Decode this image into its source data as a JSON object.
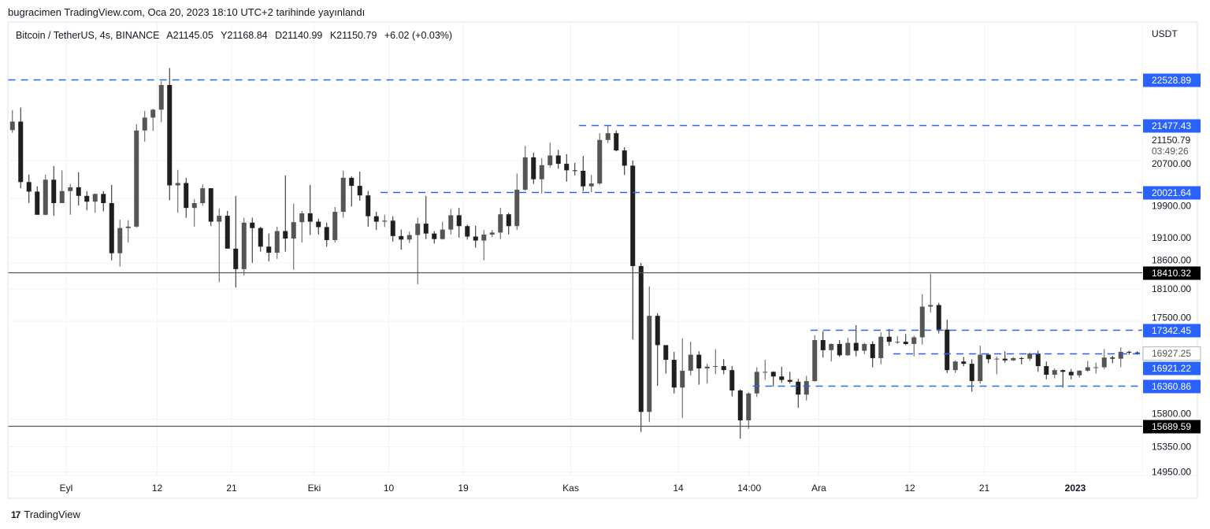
{
  "publication": "bugracimen TradingView.com, Oca 20, 2023 18:10 UTC+2 tarihinde yayınlandı",
  "legend": {
    "symbol": "Bitcoin / TetherUS, 4s, BINANCE",
    "open": "A21145.05",
    "high": "Y21168.84",
    "low": "D21140.99",
    "close": "K21150.79",
    "change": "+6.02 (+0.03%)"
  },
  "brand": "TradingView",
  "chart_data": {
    "type": "candlestick",
    "symbol": "BTCUSDT",
    "exchange": "BINANCE",
    "interval": "4s",
    "currency": "USDT",
    "yscale": "log",
    "ylim": [
      14800,
      23100
    ],
    "grid": true,
    "colors": {
      "candle": "#555555",
      "candle_down": "#1f1f1f",
      "dashed_level": "#2962ff",
      "solid_level": "#000000"
    },
    "y_ticks": [
      20700,
      19900,
      19100,
      18600,
      18100,
      17500,
      15800,
      15350,
      14950
    ],
    "x_ticks": [
      {
        "date": "2022-09-01",
        "label": "Eyl"
      },
      {
        "date": "2022-09-12",
        "label": "12"
      },
      {
        "date": "2022-09-21",
        "label": "21"
      },
      {
        "date": "2022-10-01",
        "label": "Eki"
      },
      {
        "date": "2022-10-10",
        "label": "10"
      },
      {
        "date": "2022-10-19",
        "label": "19"
      },
      {
        "date": "2022-11-01",
        "label": "Kas"
      },
      {
        "date": "2022-11-14",
        "label": "14"
      },
      {
        "date": "2022-11-22T14:00",
        "label": "14:00"
      },
      {
        "date": "2022-12-01",
        "label": "Ara"
      },
      {
        "date": "2022-12-12",
        "label": "12"
      },
      {
        "date": "2022-12-21",
        "label": "21"
      },
      {
        "date": "2023-01-01",
        "label": "2023",
        "bold": true
      }
    ],
    "levels": [
      {
        "price": 22528.89,
        "label": "22528.89",
        "style": "dashed",
        "from": "2022-08-25"
      },
      {
        "price": 21477.43,
        "label": "21477.43",
        "style": "dashed",
        "from": "2022-11-02"
      },
      {
        "price": 20021.64,
        "label": "20021.64",
        "style": "dashed",
        "from": "2022-10-09"
      },
      {
        "price": 18410.32,
        "label": "18410.32",
        "style": "solid",
        "from": "2022-08-25"
      },
      {
        "price": 17342.45,
        "label": "17342.45",
        "style": "dashed",
        "from": "2022-11-30"
      },
      {
        "price": 16921.22,
        "label": "16921.22",
        "style": "dashed",
        "from": "2022-12-10"
      },
      {
        "price": 16360.86,
        "label": "16360.86",
        "style": "dashed",
        "from": "2022-11-23"
      },
      {
        "price": 15689.59,
        "label": "15689.59",
        "style": "solid",
        "from": "2022-08-25"
      }
    ],
    "last_price": {
      "price": 21150.79,
      "label": "21150.79",
      "countdown": "03:49:26"
    },
    "crosshair_price": {
      "price": 16927.25,
      "label": "16927.25"
    },
    "candles_start": "2022-08-25",
    "candles": [
      [
        21370,
        21820,
        21310,
        21560
      ],
      [
        21560,
        21880,
        20110,
        20240
      ],
      [
        20240,
        20400,
        19800,
        20040
      ],
      [
        20040,
        20150,
        19600,
        19560
      ],
      [
        19560,
        20400,
        19550,
        20290
      ],
      [
        20290,
        20580,
        19540,
        19800
      ],
      [
        19800,
        20490,
        19800,
        20050
      ],
      [
        20050,
        20200,
        19560,
        20130
      ],
      [
        20130,
        20450,
        19750,
        19950
      ],
      [
        19950,
        20050,
        19650,
        19830
      ],
      [
        19830,
        20000,
        19600,
        19990
      ],
      [
        19990,
        20050,
        19630,
        19800
      ],
      [
        19800,
        20180,
        18650,
        18790
      ],
      [
        18790,
        19460,
        18530,
        19290
      ],
      [
        19290,
        19450,
        19000,
        19320
      ],
      [
        19320,
        21500,
        19300,
        21360
      ],
      [
        21360,
        21800,
        21110,
        21650
      ],
      [
        21650,
        21850,
        21350,
        21830
      ],
      [
        21830,
        22490,
        21550,
        22400
      ],
      [
        22400,
        22800,
        19860,
        20170
      ],
      [
        20170,
        20500,
        19600,
        20220
      ],
      [
        20220,
        20330,
        19500,
        19700
      ],
      [
        19700,
        19880,
        19320,
        19800
      ],
      [
        19800,
        20190,
        19750,
        20110
      ],
      [
        20110,
        20110,
        19330,
        19420
      ],
      [
        19420,
        19690,
        18230,
        19540
      ],
      [
        19540,
        19640,
        18930,
        18880
      ],
      [
        18880,
        19950,
        18130,
        18480
      ],
      [
        18480,
        19500,
        18360,
        19400
      ],
      [
        19400,
        19500,
        18600,
        19290
      ],
      [
        19290,
        19320,
        18820,
        18920
      ],
      [
        18920,
        19180,
        18630,
        18800
      ],
      [
        18800,
        19320,
        18680,
        19230
      ],
      [
        19230,
        20380,
        18820,
        19080
      ],
      [
        19080,
        19790,
        18470,
        19410
      ],
      [
        19410,
        19640,
        19000,
        19590
      ],
      [
        19590,
        20180,
        19150,
        19420
      ],
      [
        19420,
        19480,
        19160,
        19310
      ],
      [
        19310,
        19400,
        18920,
        19050
      ],
      [
        19050,
        19720,
        19000,
        19620
      ],
      [
        19620,
        20480,
        19500,
        20330
      ],
      [
        20330,
        20360,
        19730,
        20160
      ],
      [
        20160,
        20460,
        19850,
        19960
      ],
      [
        19960,
        20050,
        19320,
        19530
      ],
      [
        19530,
        19620,
        19250,
        19420
      ],
      [
        19420,
        19560,
        19310,
        19440
      ],
      [
        19440,
        19530,
        19020,
        19130
      ],
      [
        19130,
        19260,
        18860,
        19060
      ],
      [
        19060,
        19220,
        18990,
        19150
      ],
      [
        19150,
        19500,
        18190,
        19380
      ],
      [
        19380,
        19950,
        19070,
        19180
      ],
      [
        19180,
        19230,
        18980,
        19070
      ],
      [
        19070,
        19420,
        19060,
        19260
      ],
      [
        19260,
        19680,
        19160,
        19550
      ],
      [
        19550,
        19700,
        19100,
        19330
      ],
      [
        19330,
        19360,
        19060,
        19120
      ],
      [
        19120,
        19340,
        18900,
        19040
      ],
      [
        19040,
        19250,
        18650,
        19160
      ],
      [
        19160,
        19250,
        19110,
        19200
      ],
      [
        19200,
        19700,
        19070,
        19570
      ],
      [
        19570,
        19600,
        19160,
        19330
      ],
      [
        19330,
        20420,
        19250,
        20080
      ],
      [
        20080,
        21020,
        20060,
        20770
      ],
      [
        20770,
        20870,
        20200,
        20300
      ],
      [
        20300,
        20750,
        20000,
        20600
      ],
      [
        20600,
        21090,
        20550,
        20810
      ],
      [
        20810,
        20930,
        20520,
        20630
      ],
      [
        20630,
        20840,
        20250,
        20490
      ],
      [
        20490,
        20650,
        20380,
        20480
      ],
      [
        20480,
        20800,
        20050,
        20150
      ],
      [
        20150,
        20390,
        20030,
        20210
      ],
      [
        20210,
        21300,
        20180,
        21150
      ],
      [
        21150,
        21480,
        21080,
        21300
      ],
      [
        21300,
        21360,
        20900,
        20920
      ],
      [
        20920,
        20990,
        20390,
        20590
      ],
      [
        20590,
        20700,
        17170,
        18540
      ],
      [
        18540,
        18600,
        15590,
        15920
      ],
      [
        15920,
        18150,
        15750,
        17600
      ],
      [
        17600,
        17650,
        16360,
        17070
      ],
      [
        17070,
        17070,
        16570,
        16810
      ],
      [
        16810,
        16950,
        16230,
        16330
      ],
      [
        16330,
        17190,
        15820,
        16620
      ],
      [
        16620,
        17130,
        16540,
        16900
      ],
      [
        16900,
        16960,
        16380,
        16660
      ],
      [
        16660,
        16740,
        16400,
        16690
      ],
      [
        16690,
        17000,
        16560,
        16700
      ],
      [
        16700,
        16820,
        16560,
        16630
      ],
      [
        16630,
        16700,
        16180,
        16280
      ],
      [
        16280,
        16300,
        15480,
        15780
      ],
      [
        15780,
        16250,
        15640,
        16230
      ],
      [
        16230,
        16680,
        16170,
        16600
      ],
      [
        16600,
        16810,
        16460,
        16600
      ],
      [
        16600,
        16610,
        16350,
        16520
      ],
      [
        16520,
        16690,
        16410,
        16460
      ],
      [
        16460,
        16600,
        16400,
        16430
      ],
      [
        16430,
        16480,
        15990,
        16210
      ],
      [
        16210,
        16530,
        16110,
        16440
      ],
      [
        16440,
        17250,
        16430,
        17160
      ],
      [
        17160,
        17320,
        16850,
        16980
      ],
      [
        16980,
        17100,
        16780,
        17090
      ],
      [
        17090,
        17160,
        16860,
        16890
      ],
      [
        16890,
        17200,
        16880,
        17110
      ],
      [
        17110,
        17430,
        16870,
        16970
      ],
      [
        16970,
        17110,
        16910,
        17090
      ],
      [
        17090,
        17140,
        16680,
        16840
      ],
      [
        16840,
        17300,
        16730,
        17220
      ],
      [
        17220,
        17360,
        17060,
        17130
      ],
      [
        17130,
        17230,
        17090,
        17130
      ],
      [
        17130,
        17270,
        17070,
        17090
      ],
      [
        17090,
        17240,
        16870,
        17210
      ],
      [
        17210,
        18000,
        17080,
        17770
      ],
      [
        17770,
        18390,
        17660,
        17800
      ],
      [
        17800,
        17840,
        17280,
        17350
      ],
      [
        17350,
        17530,
        16580,
        16630
      ],
      [
        16630,
        16800,
        16580,
        16780
      ],
      [
        16780,
        16860,
        16700,
        16740
      ],
      [
        16740,
        16820,
        16260,
        16440
      ],
      [
        16440,
        17060,
        16400,
        16900
      ],
      [
        16900,
        16920,
        16750,
        16820
      ],
      [
        16820,
        16870,
        16560,
        16830
      ],
      [
        16830,
        16960,
        16760,
        16800
      ],
      [
        16800,
        16860,
        16790,
        16840
      ],
      [
        16840,
        16860,
        16730,
        16830
      ],
      [
        16830,
        16940,
        16790,
        16920
      ],
      [
        16920,
        16970,
        16600,
        16700
      ],
      [
        16700,
        16780,
        16470,
        16550
      ],
      [
        16550,
        16660,
        16490,
        16630
      ],
      [
        16630,
        16640,
        16330,
        16600
      ],
      [
        16600,
        16650,
        16470,
        16540
      ],
      [
        16540,
        16630,
        16500,
        16620
      ],
      [
        16620,
        16790,
        16600,
        16680
      ],
      [
        16680,
        16760,
        16570,
        16680
      ],
      [
        16680,
        17000,
        16650,
        16850
      ],
      [
        16850,
        16880,
        16750,
        16830
      ],
      [
        16830,
        17030,
        16680,
        16950
      ],
      [
        16950,
        16970,
        16900,
        16940
      ],
      [
        16940,
        16960,
        16900,
        16927
      ]
    ]
  }
}
